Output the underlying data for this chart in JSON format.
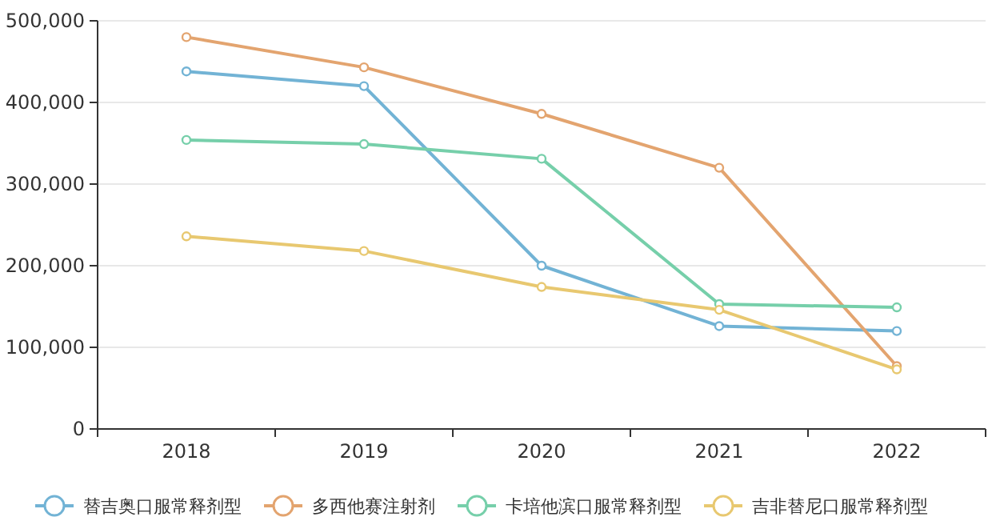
{
  "chart_data": {
    "type": "line",
    "categories": [
      "2018",
      "2019",
      "2020",
      "2021",
      "2022"
    ],
    "series": [
      {
        "name": "替吉奥口服常释剂型",
        "color": "#72b3d5",
        "values": [
          438000,
          420000,
          200000,
          126000,
          120000
        ]
      },
      {
        "name": "多西他赛注射剂",
        "color": "#e3a46f",
        "values": [
          480000,
          443000,
          386000,
          320000,
          77000
        ]
      },
      {
        "name": "卡培他滨口服常释剂型",
        "color": "#76cfaa",
        "values": [
          354000,
          349000,
          331000,
          153000,
          149000
        ]
      },
      {
        "name": "吉非替尼口服常释剂型",
        "color": "#e8c870",
        "values": [
          236000,
          218000,
          174000,
          146000,
          73000
        ]
      }
    ],
    "ylim": [
      0,
      500000
    ],
    "yticks": [
      {
        "value": 0,
        "label": "0"
      },
      {
        "value": 100000,
        "label": "100,000"
      },
      {
        "value": 200000,
        "label": "200,000"
      },
      {
        "value": 300000,
        "label": "300,000"
      },
      {
        "value": 400000,
        "label": "400,000"
      },
      {
        "value": 500000,
        "label": "500,000"
      }
    ],
    "grid": "y",
    "legend": "bottom",
    "marker": "circle",
    "line_style": "solid"
  }
}
